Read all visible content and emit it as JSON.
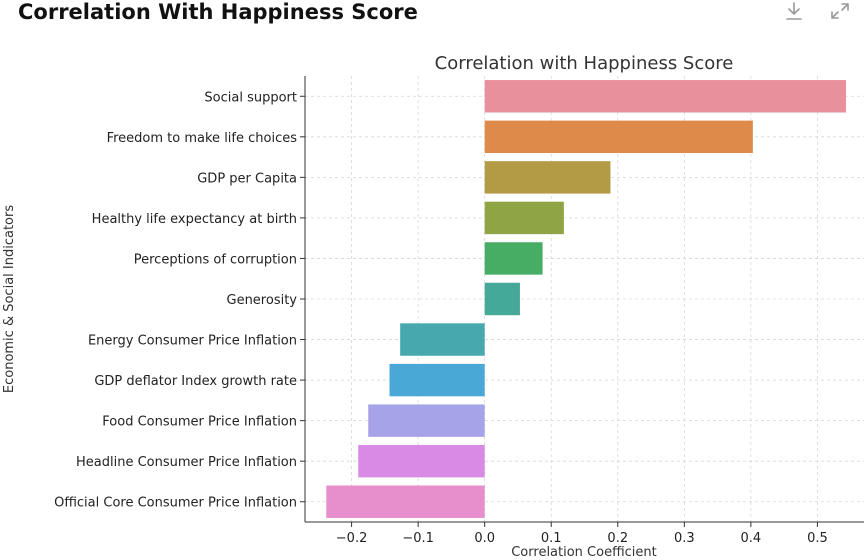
{
  "header": {
    "title": "Correlation With Happiness Score",
    "download_icon": "download-icon",
    "expand_icon": "expand-icon"
  },
  "chart_data": {
    "type": "bar",
    "orientation": "horizontal",
    "title": "Correlation with Happiness Score",
    "xlabel": "Correlation Coefficient",
    "ylabel": "Economic & Social Indicators",
    "xlim": [
      -0.27,
      0.57
    ],
    "xticks": [
      -0.2,
      -0.1,
      0.0,
      0.1,
      0.2,
      0.3,
      0.4,
      0.5
    ],
    "xtick_labels": [
      "−0.2",
      "−0.1",
      "0.0",
      "0.1",
      "0.2",
      "0.3",
      "0.4",
      "0.5"
    ],
    "grid": true,
    "categories": [
      "Social support",
      "Freedom to make life choices",
      "GDP per Capita",
      "Healthy life expectancy at birth",
      "Perceptions of corruption",
      "Generosity",
      "Energy Consumer Price Inflation",
      "GDP deflator Index growth rate",
      "Food Consumer Price Inflation",
      "Headline Consumer Price Inflation",
      "Official Core Consumer Price Inflation"
    ],
    "values": [
      0.543,
      0.403,
      0.189,
      0.119,
      0.087,
      0.053,
      -0.127,
      -0.143,
      -0.175,
      -0.19,
      -0.238
    ],
    "colors": [
      "#e8909b",
      "#dd8a4b",
      "#b39a45",
      "#8fa545",
      "#47ad65",
      "#45a99a",
      "#47a9ae",
      "#4aa8d6",
      "#a6a3e8",
      "#d98ae5",
      "#e68fcc"
    ]
  }
}
